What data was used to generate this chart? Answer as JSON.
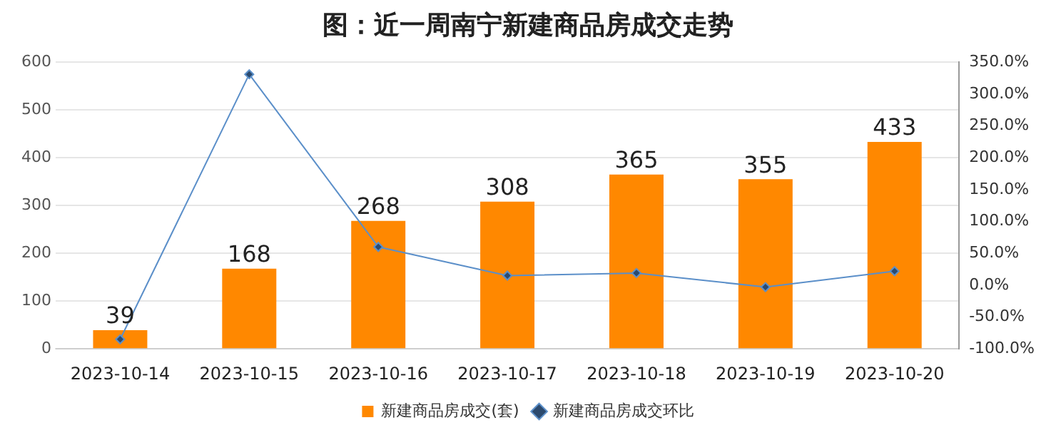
{
  "chart_data": {
    "type": "bar",
    "title": "图：近一周南宁新建商品房成交走势",
    "categories": [
      "2023-10-14",
      "2023-10-15",
      "2023-10-16",
      "2023-10-17",
      "2023-10-18",
      "2023-10-19",
      "2023-10-20"
    ],
    "series": [
      {
        "name": "新建商品房成交(套)",
        "type": "bar",
        "color": "#ff8800",
        "values": [
          39,
          168,
          268,
          308,
          365,
          355,
          433
        ],
        "value_labels": [
          "39",
          "168",
          "268",
          "308",
          "365",
          "355",
          "433"
        ]
      },
      {
        "name": "新建商品房成交环比",
        "type": "line",
        "axis": "y2",
        "color": "#5b8fc9",
        "marker": "diamond",
        "values": [
          -85,
          331,
          60,
          15,
          19,
          -3,
          22
        ]
      }
    ],
    "ylim": [
      0,
      600
    ],
    "yticks": [
      0,
      100,
      200,
      300,
      400,
      500,
      600
    ],
    "y2lim": [
      -100,
      350
    ],
    "y2ticks": [
      {
        "value": -100,
        "label": "-100.0%"
      },
      {
        "value": -50,
        "label": "-50.0%"
      },
      {
        "value": 0,
        "label": "0.0%"
      },
      {
        "value": 50,
        "label": "50.0%"
      },
      {
        "value": 100,
        "label": "100.0%"
      },
      {
        "value": 150,
        "label": "150.0%"
      },
      {
        "value": 200,
        "label": "200.0%"
      },
      {
        "value": 250,
        "label": "250.0%"
      },
      {
        "value": 300,
        "label": "300.0%"
      },
      {
        "value": 350,
        "label": "350.0%"
      }
    ],
    "grid": "y",
    "legend": "bottom"
  }
}
